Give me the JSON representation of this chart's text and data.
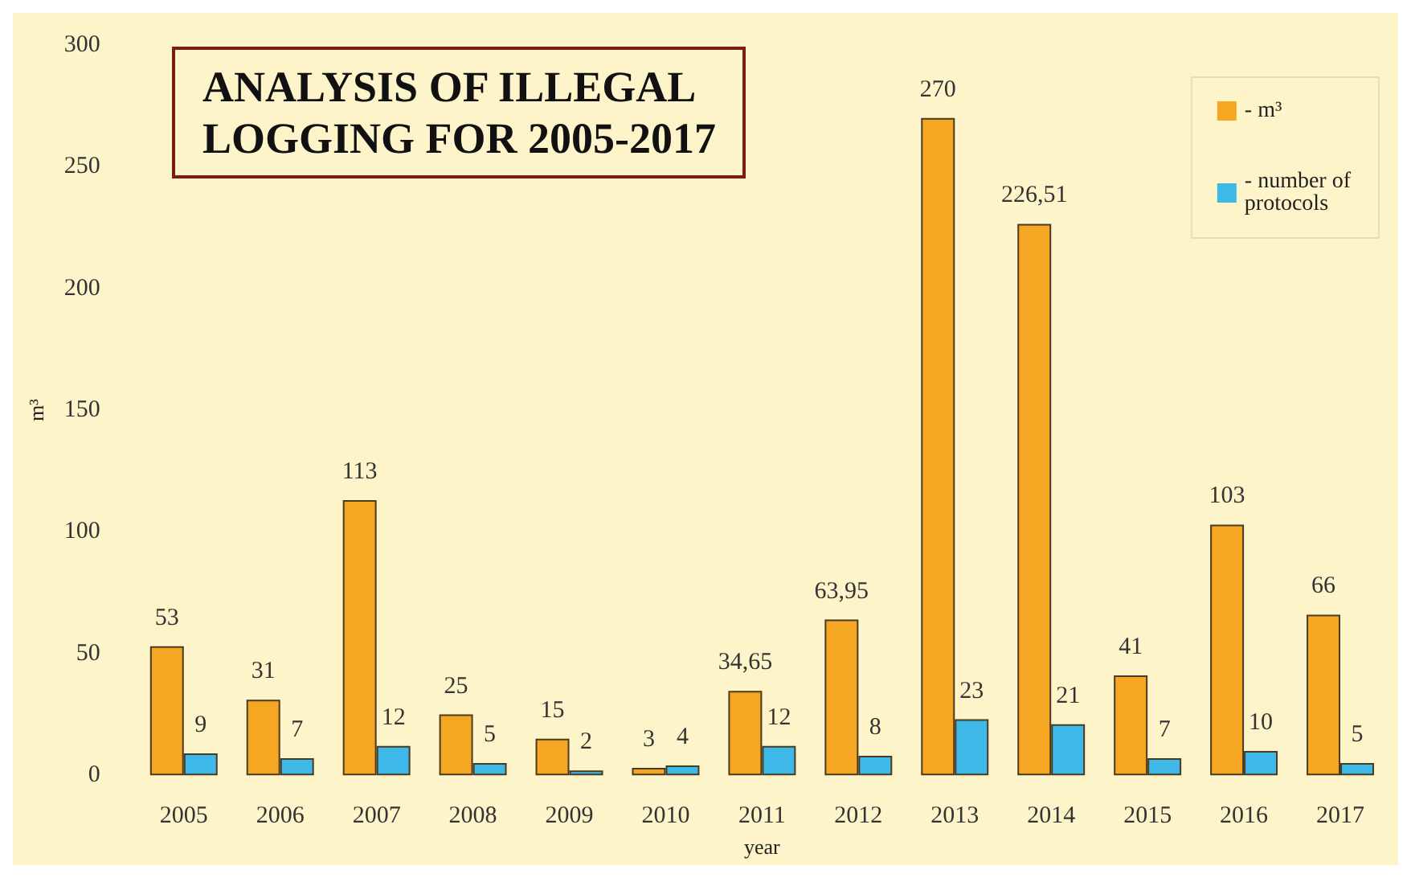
{
  "chart_data": {
    "type": "bar",
    "title": "ANALYSIS OF ILLEGAL\nLOGGING FOR 2005-2017",
    "xlabel": "year",
    "ylabel": "m³",
    "categories": [
      "2005",
      "2006",
      "2007",
      "2008",
      "2009",
      "2010",
      "2011",
      "2012",
      "2013",
      "2014",
      "2015",
      "2016",
      "2017"
    ],
    "series": [
      {
        "name": "- m³",
        "color": "#f5a623",
        "values": [
          53,
          31,
          113,
          25,
          15,
          3,
          34.65,
          63.95,
          270,
          226.51,
          41,
          103,
          66
        ],
        "value_labels": [
          "53",
          "31",
          "113",
          "25",
          "15",
          "3",
          "34,65",
          "63,95",
          "270",
          "226,51",
          "41",
          "103",
          "66"
        ]
      },
      {
        "name": "- number of protocols",
        "color": "#3db8e8",
        "values": [
          9,
          7,
          12,
          5,
          2,
          4,
          12,
          8,
          23,
          21,
          7,
          10,
          5
        ],
        "value_labels": [
          "9",
          "7",
          "12",
          "5",
          "2",
          "4",
          "12",
          "8",
          "23",
          "21",
          "7",
          "10",
          "5"
        ]
      }
    ],
    "ylim": [
      0,
      300
    ],
    "yticks": [
      0,
      50,
      100,
      150,
      200,
      250,
      300
    ],
    "grid": false,
    "legend": "top right"
  }
}
